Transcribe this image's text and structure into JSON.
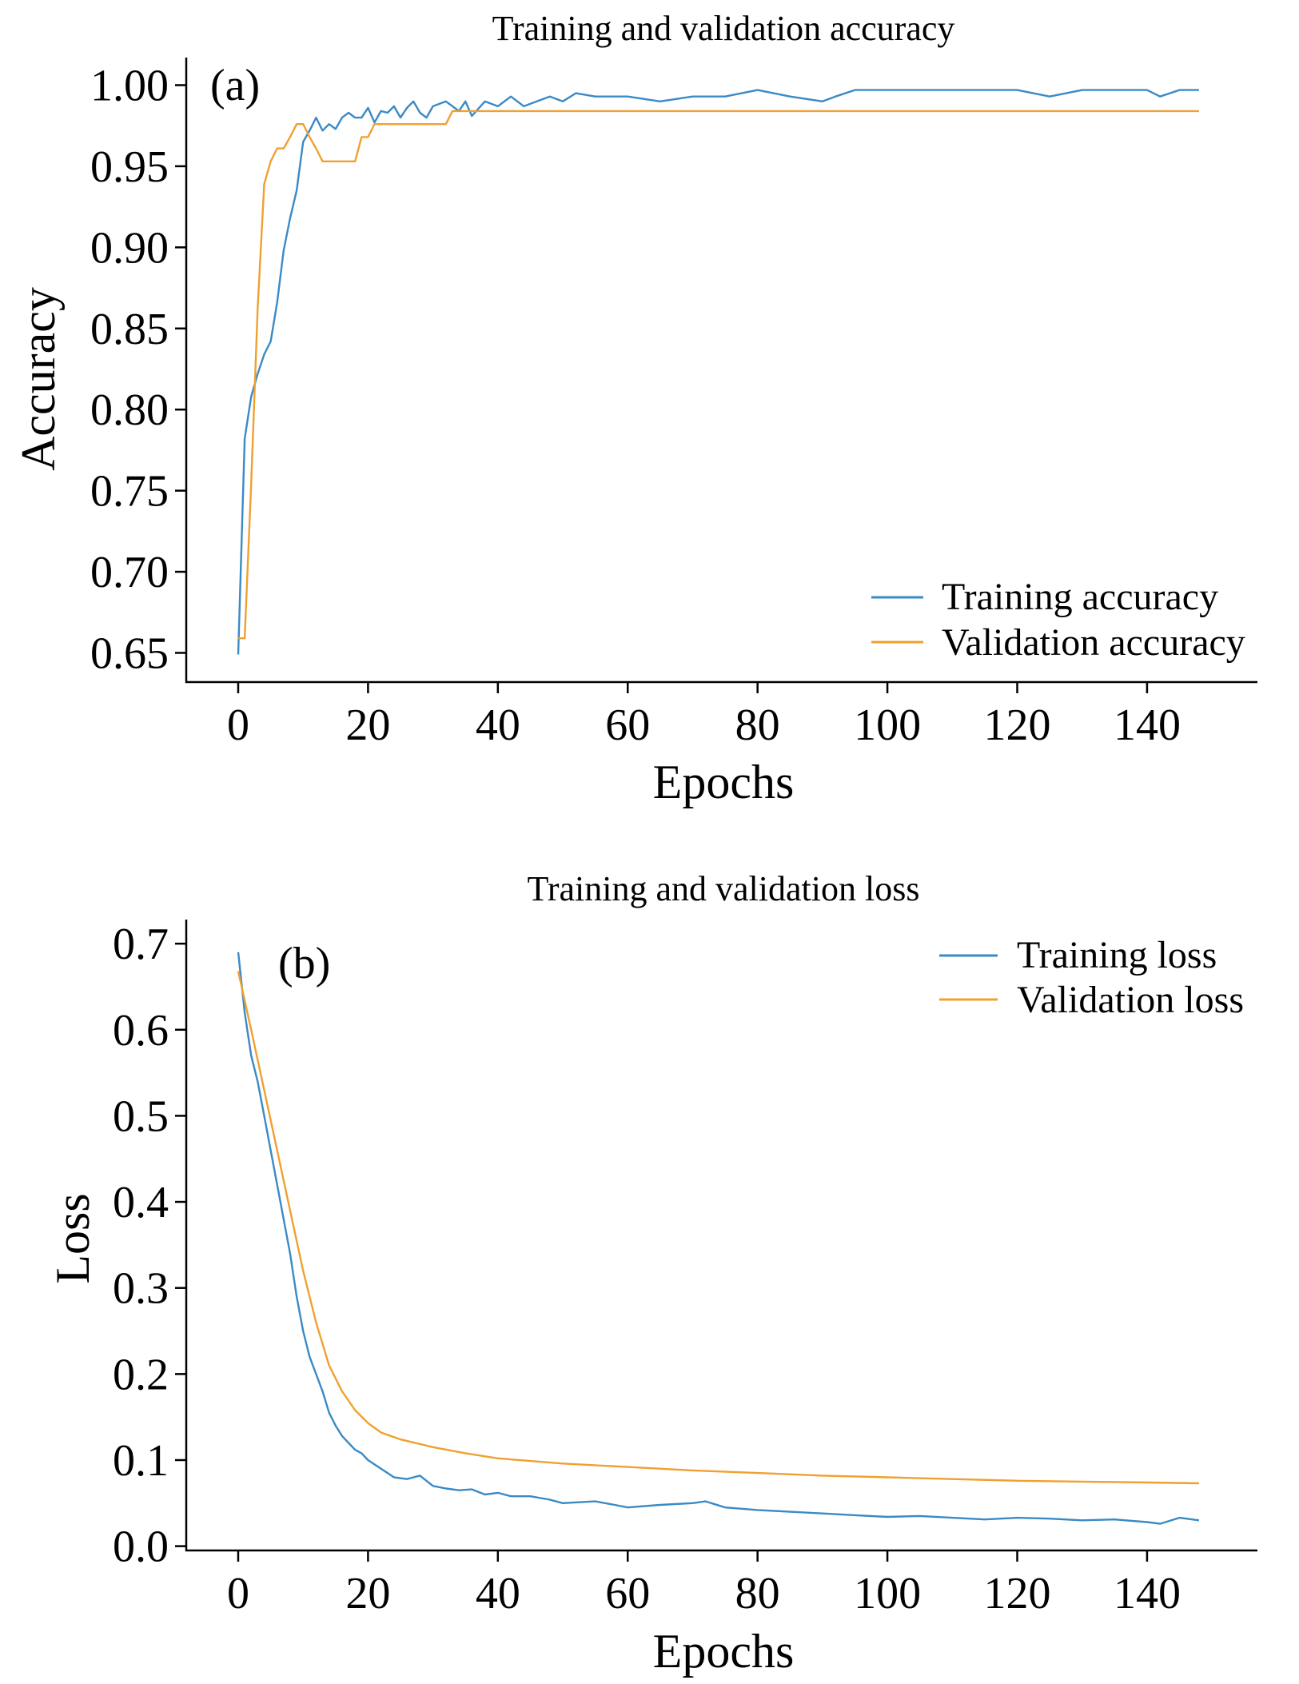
{
  "chart_data": [
    {
      "type": "line",
      "panel_label": "(a)",
      "title": "Training and validation accuracy",
      "xlabel": "Epochs",
      "ylabel": "Accuracy",
      "xlim": [
        -8,
        157
      ],
      "ylim": [
        0.632,
        1.017
      ],
      "xticks": [
        0,
        20,
        40,
        60,
        80,
        100,
        120,
        140
      ],
      "xtick_labels": [
        "0",
        "20",
        "40",
        "60",
        "80",
        "100",
        "120",
        "140"
      ],
      "yticks": [
        0.65,
        0.7,
        0.75,
        0.8,
        0.85,
        0.9,
        0.95,
        1.0
      ],
      "ytick_labels": [
        "0.65",
        "0.70",
        "0.75",
        "0.80",
        "0.85",
        "0.90",
        "0.95",
        "1.00"
      ],
      "grid": false,
      "legend_position": "bottom-right",
      "series": [
        {
          "name": "Training accuracy",
          "color": "#3a8ac6",
          "x": [
            0,
            1,
            2,
            3,
            4,
            5,
            6,
            7,
            8,
            9,
            10,
            11,
            12,
            13,
            14,
            15,
            16,
            17,
            18,
            19,
            20,
            21,
            22,
            23,
            24,
            25,
            26,
            27,
            28,
            29,
            30,
            32,
            34,
            35,
            36,
            38,
            40,
            42,
            44,
            46,
            48,
            50,
            52,
            55,
            60,
            65,
            70,
            75,
            80,
            85,
            90,
            92,
            95,
            100,
            105,
            110,
            115,
            120,
            125,
            130,
            135,
            140,
            142,
            145,
            148
          ],
          "y": [
            0.649,
            0.782,
            0.808,
            0.822,
            0.834,
            0.842,
            0.866,
            0.898,
            0.918,
            0.935,
            0.965,
            0.972,
            0.98,
            0.972,
            0.976,
            0.973,
            0.98,
            0.983,
            0.98,
            0.98,
            0.986,
            0.977,
            0.984,
            0.983,
            0.987,
            0.98,
            0.986,
            0.99,
            0.983,
            0.98,
            0.987,
            0.99,
            0.984,
            0.99,
            0.981,
            0.99,
            0.987,
            0.993,
            0.987,
            0.99,
            0.993,
            0.99,
            0.995,
            0.993,
            0.993,
            0.99,
            0.993,
            0.993,
            0.997,
            0.993,
            0.99,
            0.993,
            0.997,
            0.997,
            0.997,
            0.997,
            0.997,
            0.997,
            0.993,
            0.997,
            0.997,
            0.997,
            0.993,
            0.997,
            0.997
          ]
        },
        {
          "name": "Validation accuracy",
          "color": "#f0a030",
          "x": [
            0,
            1,
            2,
            3,
            4,
            5,
            6,
            7,
            8,
            9,
            10,
            11,
            12,
            13,
            14,
            15,
            16,
            17,
            18,
            19,
            20,
            21,
            22,
            24,
            26,
            28,
            30,
            32,
            33,
            34,
            35,
            36,
            40,
            60,
            80,
            100,
            120,
            148
          ],
          "y": [
            0.659,
            0.659,
            0.754,
            0.862,
            0.939,
            0.953,
            0.961,
            0.961,
            0.968,
            0.976,
            0.976,
            0.968,
            0.961,
            0.953,
            0.953,
            0.953,
            0.953,
            0.953,
            0.953,
            0.968,
            0.968,
            0.976,
            0.976,
            0.976,
            0.976,
            0.976,
            0.976,
            0.976,
            0.984,
            0.984,
            0.984,
            0.984,
            0.984,
            0.984,
            0.984,
            0.984,
            0.984,
            0.984
          ]
        }
      ]
    },
    {
      "type": "line",
      "panel_label": "(b)",
      "title": "Training and validation loss",
      "xlabel": "Epochs",
      "ylabel": "Loss",
      "xlim": [
        -8,
        157
      ],
      "ylim": [
        -0.005,
        0.728
      ],
      "xticks": [
        0,
        20,
        40,
        60,
        80,
        100,
        120,
        140
      ],
      "xtick_labels": [
        "0",
        "20",
        "40",
        "60",
        "80",
        "100",
        "120",
        "140"
      ],
      "yticks": [
        0.0,
        0.1,
        0.2,
        0.3,
        0.4,
        0.5,
        0.6,
        0.7
      ],
      "ytick_labels": [
        "0.0",
        "0.1",
        "0.2",
        "0.3",
        "0.4",
        "0.5",
        "0.6",
        "0.7"
      ],
      "grid": false,
      "legend_position": "top-right",
      "series": [
        {
          "name": "Training loss",
          "color": "#3a8ac6",
          "x": [
            0,
            1,
            2,
            3,
            4,
            5,
            6,
            7,
            8,
            9,
            10,
            11,
            12,
            13,
            14,
            15,
            16,
            17,
            18,
            19,
            20,
            21,
            22,
            23,
            24,
            26,
            28,
            30,
            32,
            34,
            36,
            38,
            40,
            42,
            45,
            48,
            50,
            55,
            58,
            60,
            65,
            70,
            72,
            75,
            80,
            85,
            90,
            95,
            100,
            105,
            110,
            115,
            120,
            125,
            130,
            135,
            140,
            142,
            145,
            148
          ],
          "y": [
            0.69,
            0.62,
            0.57,
            0.54,
            0.5,
            0.46,
            0.42,
            0.38,
            0.34,
            0.29,
            0.25,
            0.22,
            0.2,
            0.18,
            0.155,
            0.14,
            0.128,
            0.12,
            0.112,
            0.108,
            0.1,
            0.095,
            0.09,
            0.085,
            0.08,
            0.078,
            0.082,
            0.07,
            0.067,
            0.065,
            0.066,
            0.06,
            0.062,
            0.058,
            0.058,
            0.054,
            0.05,
            0.052,
            0.048,
            0.045,
            0.048,
            0.05,
            0.052,
            0.045,
            0.042,
            0.04,
            0.038,
            0.036,
            0.034,
            0.035,
            0.033,
            0.031,
            0.033,
            0.032,
            0.03,
            0.031,
            0.028,
            0.026,
            0.033,
            0.03
          ]
        },
        {
          "name": "Validation loss",
          "color": "#f0a030",
          "x": [
            0,
            2,
            4,
            6,
            8,
            10,
            12,
            14,
            16,
            18,
            20,
            22,
            25,
            30,
            35,
            40,
            50,
            60,
            70,
            80,
            90,
            100,
            110,
            120,
            130,
            140,
            148
          ],
          "y": [
            0.668,
            0.6,
            0.53,
            0.46,
            0.39,
            0.32,
            0.26,
            0.21,
            0.18,
            0.158,
            0.143,
            0.132,
            0.124,
            0.115,
            0.108,
            0.102,
            0.096,
            0.092,
            0.088,
            0.085,
            0.082,
            0.08,
            0.078,
            0.076,
            0.075,
            0.074,
            0.073
          ]
        }
      ]
    }
  ]
}
